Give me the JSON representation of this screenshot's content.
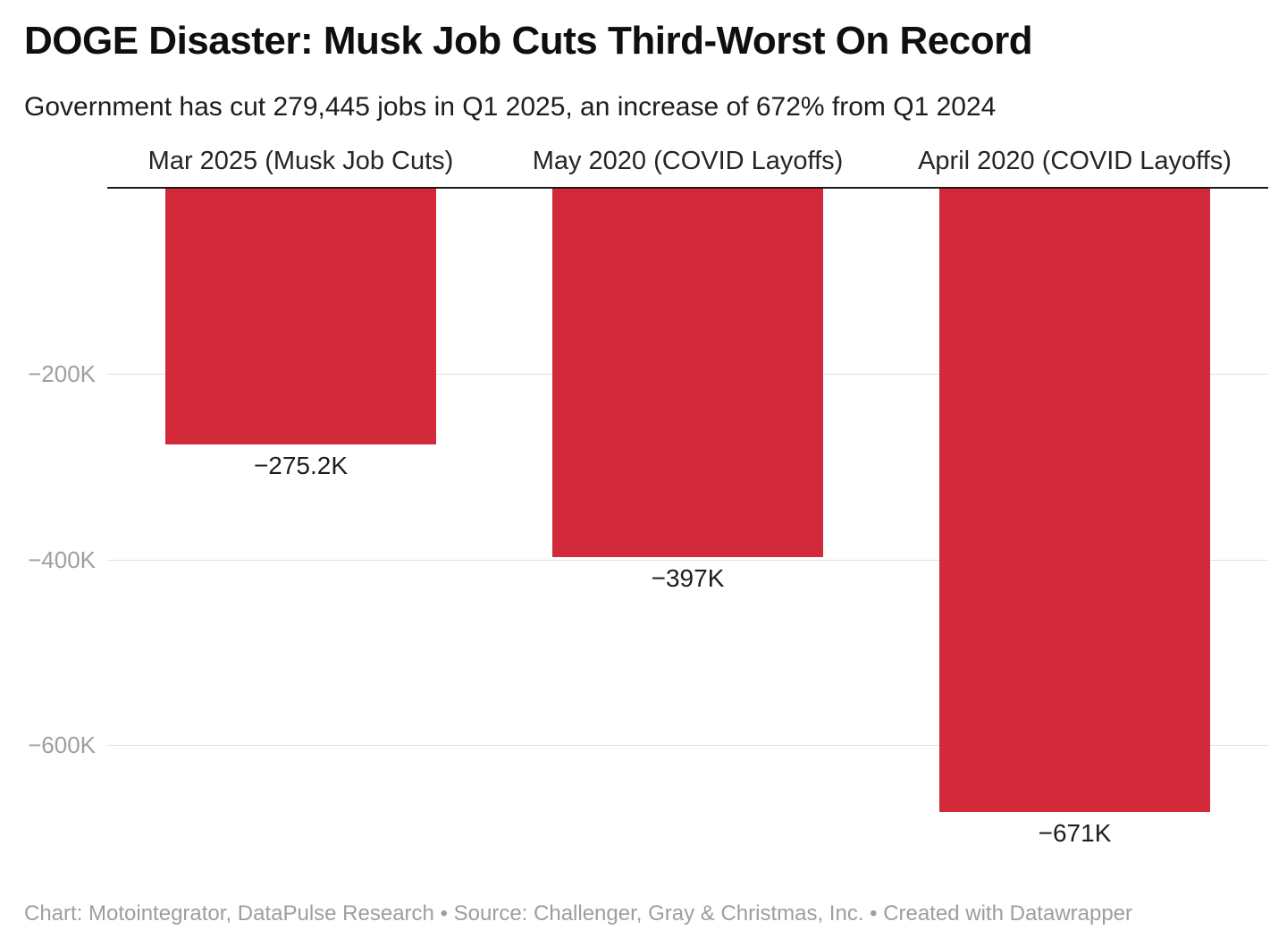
{
  "chart_data": {
    "type": "bar",
    "title": "DOGE Disaster: Musk Job Cuts Third-Worst On Record",
    "subtitle": "Government has cut 279,445 jobs in Q1 2025, an increase of 672% from Q1 2024",
    "categories": [
      "Mar 2025 (Musk Job Cuts)",
      "May 2020 (COVID Layoffs)",
      "April 2020 (COVID Layoffs)"
    ],
    "values": [
      -275.2,
      -397,
      -671
    ],
    "value_labels": [
      "−275.2K",
      "−397K",
      "−671K"
    ],
    "unit": "thousands of jobs",
    "yticks": [
      {
        "value": -200,
        "label": "−200K"
      },
      {
        "value": -400,
        "label": "−400K"
      },
      {
        "value": -600,
        "label": "−600K"
      }
    ],
    "ylim": [
      -700,
      0
    ],
    "grid": true,
    "legend": "none",
    "orientation": "vertical-negative",
    "baseline_at_zero": true
  },
  "colors": {
    "bar": "#d2293b",
    "grid": "#e0e0e0",
    "baseline": "#1a1a1a",
    "tick_text": "#9f9f9f",
    "label_text": "#1d1d1d",
    "footer_text": "#9e9e9e",
    "background": "#ffffff"
  },
  "footer": {
    "text": "Chart: Motointegrator, DataPulse Research • Source: Challenger, Gray & Christmas, Inc. • Created with Datawrapper"
  }
}
